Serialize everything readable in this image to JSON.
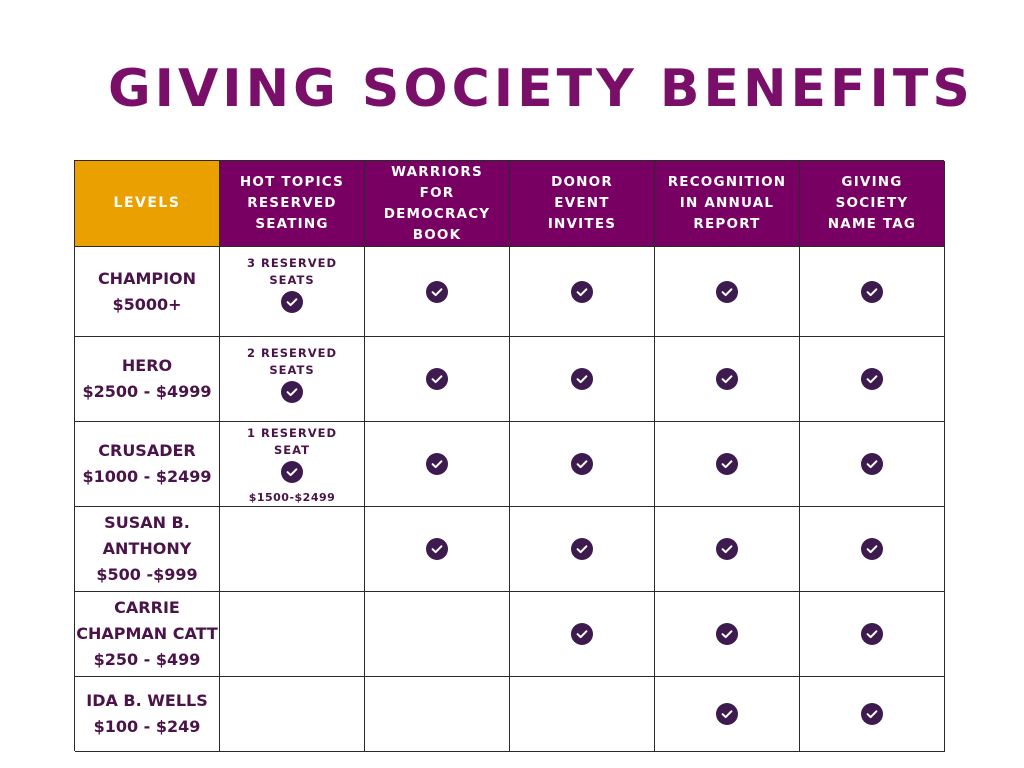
{
  "title": "GIVING SOCIETY BENEFITS",
  "colors": {
    "title": "#7a0f6a",
    "header_bg": "#780062",
    "levels_header_bg": "#eaa100",
    "text_dark": "#4a1448",
    "check_fill": "#3e1b4e"
  },
  "icons": {
    "benefit_included": "check-circle-icon"
  },
  "table": {
    "columns": [
      {
        "lines": [
          "LEVELS"
        ]
      },
      {
        "lines": [
          "HOT TOPICS",
          "RESERVED",
          "SEATING"
        ]
      },
      {
        "lines": [
          "WARRIORS",
          "FOR",
          "DEMOCRACY",
          "BOOK"
        ]
      },
      {
        "lines": [
          "DONOR",
          "EVENT",
          "INVITES"
        ]
      },
      {
        "lines": [
          "RECOGNITION",
          "IN ANNUAL",
          "REPORT"
        ]
      },
      {
        "lines": [
          "GIVING",
          "SOCIETY",
          "NAME TAG"
        ]
      }
    ],
    "rows": [
      {
        "level": [
          "CHAMPION",
          "$5000+"
        ],
        "seats": {
          "lines": [
            "3 RESERVED",
            "SEATS"
          ],
          "check": true,
          "note": ""
        },
        "benefits": [
          true,
          true,
          true,
          true
        ]
      },
      {
        "level": [
          "HERO",
          "$2500 - $4999"
        ],
        "seats": {
          "lines": [
            "2 RESERVED",
            "SEATS"
          ],
          "check": true,
          "note": ""
        },
        "benefits": [
          true,
          true,
          true,
          true
        ]
      },
      {
        "level": [
          "CRUSADER",
          "$1000 - $2499"
        ],
        "seats": {
          "lines": [
            "1 RESERVED",
            "SEAT"
          ],
          "check": true,
          "note": "$1500-$2499"
        },
        "benefits": [
          true,
          true,
          true,
          true
        ]
      },
      {
        "level": [
          "SUSAN B.",
          "ANTHONY",
          "$500 -$999"
        ],
        "seats": null,
        "benefits": [
          true,
          true,
          true,
          true
        ]
      },
      {
        "level": [
          "CARRIE",
          "CHAPMAN CATT",
          "$250 - $499"
        ],
        "seats": null,
        "benefits": [
          false,
          true,
          true,
          true
        ]
      },
      {
        "level": [
          "IDA B. WELLS",
          "$100 - $249"
        ],
        "seats": null,
        "benefits": [
          false,
          false,
          true,
          true
        ]
      }
    ]
  }
}
